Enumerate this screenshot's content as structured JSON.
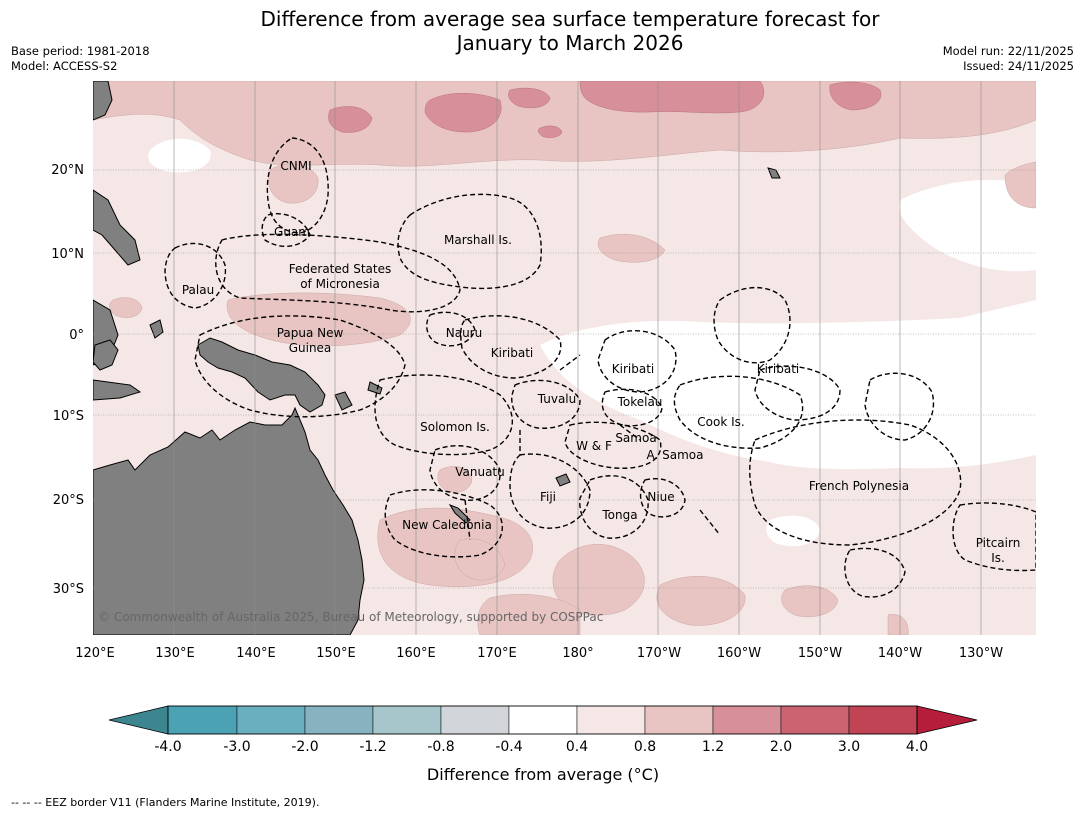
{
  "header": {
    "title_line1": "Difference from average sea surface temperature forecast for",
    "title_line2": "January to March 2026",
    "base_period": "Base period: 1981-2018",
    "model": "Model: ACCESS-S2",
    "model_run": "Model run: 22/11/2025",
    "issued": "Issued: 24/11/2025"
  },
  "map": {
    "lat_labels": [
      "20°N",
      "10°N",
      "0°",
      "10°S",
      "20°S",
      "30°S"
    ],
    "lon_labels": [
      "120°E",
      "130°E",
      "140°E",
      "150°E",
      "160°E",
      "170°E",
      "180°",
      "170°W",
      "160°W",
      "150°W",
      "140°W",
      "130°W"
    ],
    "places": {
      "cnmi": "CNMI",
      "guam": "Guam",
      "marshall": "Marshall Is.",
      "fsm1": "Federated States",
      "fsm2": "of Micronesia",
      "palau": "Palau",
      "png1": "Papua New",
      "png2": "Guinea",
      "nauru": "Nauru",
      "kiribati_w": "Kiribati",
      "kiribati_c": "Kiribati",
      "kiribati_e": "Kiribati",
      "tuvalu": "Tuvalu",
      "tokelau": "Tokelau",
      "cook": "Cook Is.",
      "solomon": "Solomon Is.",
      "wf": "W & F",
      "samoa": "Samoa",
      "asamoa": "A. Samoa",
      "vanuatu": "Vanuatu",
      "fiji": "Fiji",
      "niue": "Niue",
      "tonga": "Tonga",
      "frenchpoly": "French Polynesia",
      "newcal": "New Caledonia",
      "pitcairn1": "Pitcairn",
      "pitcairn2": "Is."
    },
    "copyright": "© Commonwealth of Australia 2025, Bureau of Meteorology, supported by COSPPac"
  },
  "colorbar": {
    "ticks": [
      "-4.0",
      "-3.0",
      "-2.0",
      "-1.2",
      "-0.8",
      "-0.4",
      "0.4",
      "0.8",
      "1.2",
      "2.0",
      "3.0",
      "4.0"
    ],
    "colors": [
      "#3d8690",
      "#4aa2b4",
      "#6aafbf",
      "#87b3c0",
      "#a7c6cb",
      "#d2d6da",
      "#ffffff",
      "#f5e7e6",
      "#e8c5c2",
      "#d78f99",
      "#cb6470",
      "#c04453",
      "#b51d3a"
    ],
    "label": "Difference from average (°C)"
  },
  "footer": "-- -- -- EEZ border V11 (Flanders Marine Institute, 2019)."
}
